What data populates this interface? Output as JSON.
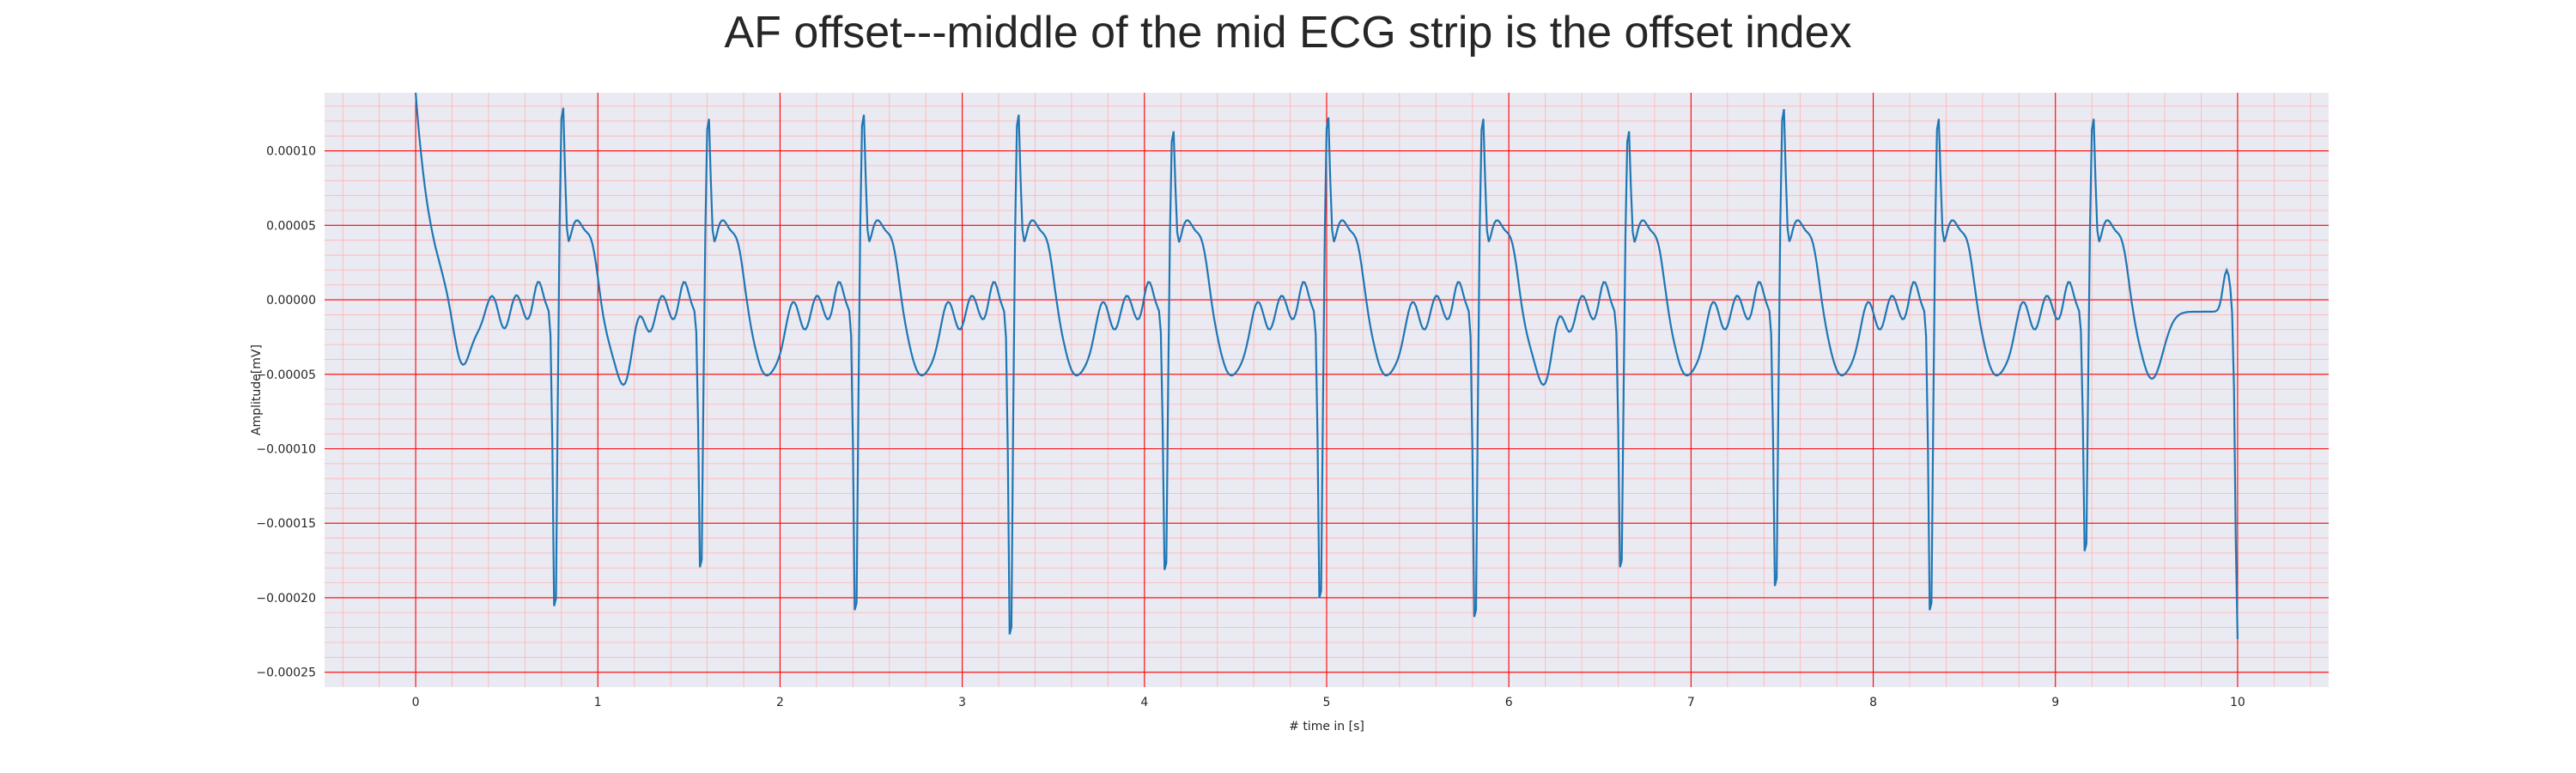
{
  "chart_data": {
    "type": "line",
    "title": "AF offset---middle of the mid ECG strip is the offset index",
    "xlabel": "# time in [s]",
    "ylabel": "Amplitude[mV]",
    "xlim": [
      -0.5,
      10.5
    ],
    "ylim": [
      -0.00026,
      0.000139
    ],
    "x_ticks": [
      0,
      1,
      2,
      3,
      4,
      5,
      6,
      7,
      8,
      9,
      10
    ],
    "y_ticks": [
      0.0001,
      5e-05,
      0.0,
      -5e-05,
      -0.0001,
      -0.00015,
      -0.0002,
      -0.00025
    ],
    "y_tick_labels": [
      "0.00010",
      "0.00005",
      "0.00000",
      "−0.00005",
      "−0.00010",
      "−0.00015",
      "−0.00020",
      "−0.00025"
    ],
    "grid": {
      "major": true,
      "minor": true,
      "major_color": "#ff0000",
      "minor_color": "#ffb3b3"
    },
    "background": "#eaeaf2",
    "series": [
      {
        "color": "#1f77b4",
        "sample_interval_s": 0.01,
        "start_s": 0.0,
        "beat_times_s": [
          0.8,
          1.6,
          2.45,
          3.3,
          4.15,
          5.0,
          5.85,
          6.65,
          7.5,
          8.35,
          9.2
        ],
        "beat_r_peak": [
          0.000123,
          0.000115,
          0.000118,
          0.000118,
          0.000106,
          0.000116,
          0.000115,
          0.000106,
          0.000122,
          0.000115,
          0.000115
        ],
        "beat_q_trough": [
          -0.000222,
          -0.000193,
          -0.000225,
          -0.000243,
          -0.000195,
          -0.000216,
          -0.00023,
          -0.000193,
          -0.000207,
          -0.000225,
          -0.000181
        ],
        "end_value": -0.00022,
        "start_value": 0.000102
      }
    ]
  }
}
